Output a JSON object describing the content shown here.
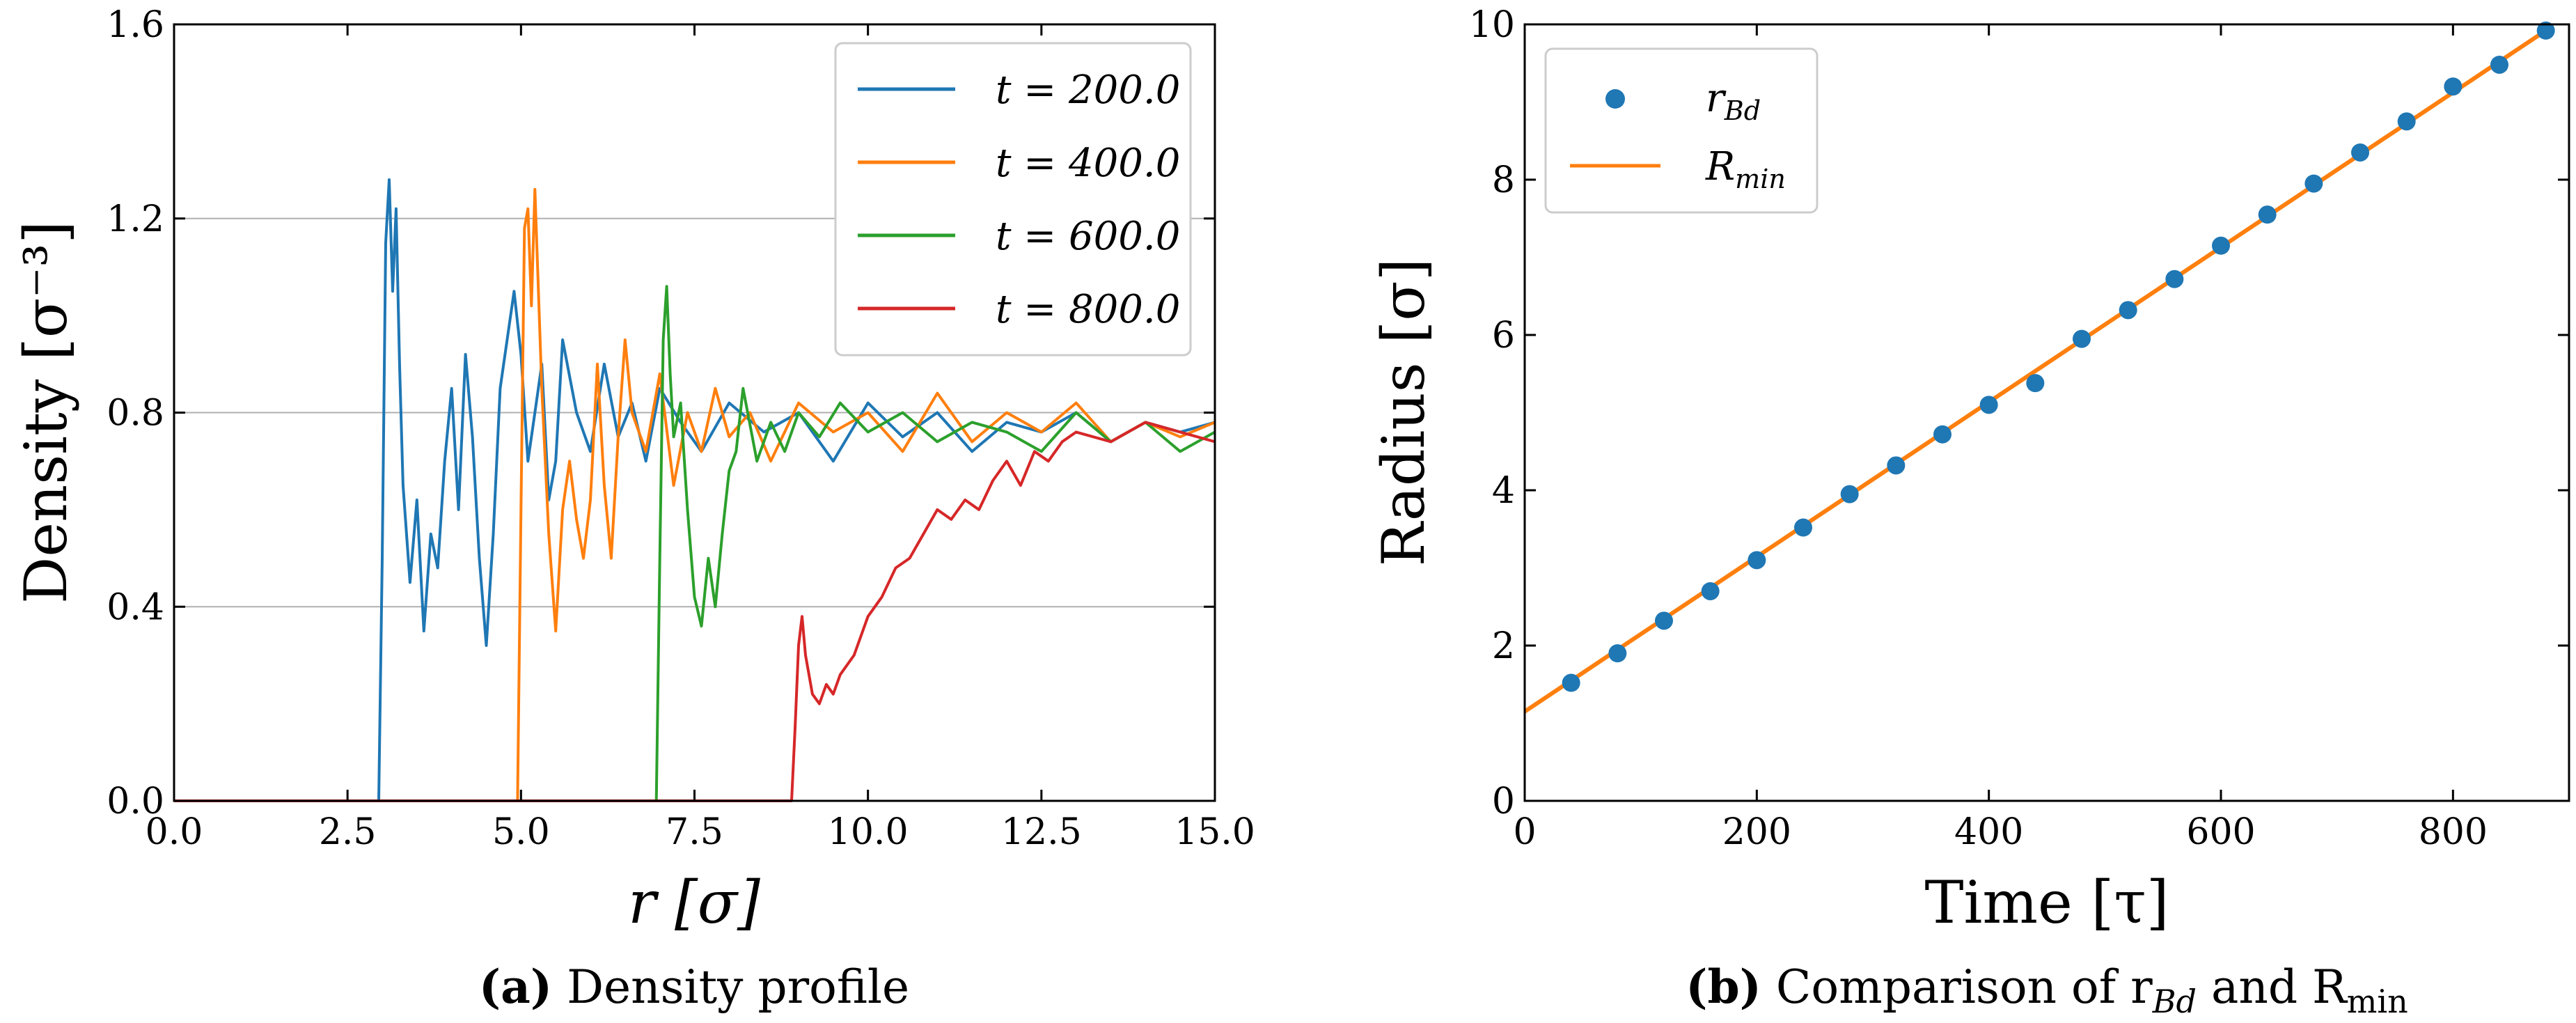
{
  "colors": {
    "blue": "#1f77b4",
    "orange": "#ff7f0e",
    "green": "#2ca02c",
    "red": "#d62728",
    "grid": "#b0b0b0",
    "axis": "#000000"
  },
  "chart_data": [
    {
      "type": "line",
      "title": "",
      "xlabel": "r [σ]",
      "ylabel": "Density [σ⁻³]",
      "xlim": [
        0.0,
        15.0
      ],
      "ylim": [
        0.0,
        1.6
      ],
      "xticks": [
        "0.0",
        "2.5",
        "5.0",
        "7.5",
        "10.0",
        "12.5",
        "15.0"
      ],
      "yticks": [
        "0.0",
        "0.4",
        "0.8",
        "1.2",
        "1.6"
      ],
      "grid": "horizontal",
      "legend_position": "top-right",
      "caption_bold": "(a)",
      "caption_text": " Density profile",
      "series": [
        {
          "name": "t = 200.0",
          "color": "#1f77b4",
          "x": [
            0.0,
            2.9,
            2.95,
            3.0,
            3.05,
            3.1,
            3.15,
            3.2,
            3.25,
            3.3,
            3.4,
            3.5,
            3.6,
            3.7,
            3.8,
            3.9,
            4.0,
            4.1,
            4.2,
            4.3,
            4.4,
            4.5,
            4.6,
            4.7,
            4.8,
            4.9,
            5.0,
            5.1,
            5.2,
            5.3,
            5.4,
            5.5,
            5.6,
            5.8,
            6.0,
            6.2,
            6.4,
            6.6,
            6.8,
            7.0,
            7.3,
            7.6,
            8.0,
            8.5,
            9.0,
            9.5,
            10.0,
            10.5,
            11.0,
            11.5,
            12.0,
            12.5,
            13.0,
            13.5,
            14.0,
            14.5,
            15.0
          ],
          "y": [
            0.0,
            0.0,
            0.0,
            0.5,
            1.15,
            1.28,
            1.05,
            1.22,
            0.9,
            0.65,
            0.45,
            0.62,
            0.35,
            0.55,
            0.48,
            0.7,
            0.85,
            0.6,
            0.92,
            0.75,
            0.5,
            0.32,
            0.55,
            0.85,
            0.95,
            1.05,
            0.92,
            0.7,
            0.8,
            0.9,
            0.62,
            0.7,
            0.95,
            0.8,
            0.72,
            0.9,
            0.75,
            0.82,
            0.7,
            0.85,
            0.78,
            0.72,
            0.82,
            0.76,
            0.8,
            0.7,
            0.82,
            0.75,
            0.8,
            0.72,
            0.78,
            0.76,
            0.8,
            0.74,
            0.78,
            0.76,
            0.78
          ]
        },
        {
          "name": "t = 400.0",
          "color": "#ff7f0e",
          "x": [
            0.0,
            4.95,
            5.0,
            5.05,
            5.1,
            5.15,
            5.2,
            5.3,
            5.4,
            5.5,
            5.6,
            5.7,
            5.8,
            5.9,
            6.0,
            6.1,
            6.2,
            6.3,
            6.4,
            6.5,
            6.6,
            6.8,
            7.0,
            7.2,
            7.4,
            7.6,
            7.8,
            8.0,
            8.3,
            8.6,
            9.0,
            9.5,
            10.0,
            10.5,
            11.0,
            11.5,
            12.0,
            12.5,
            13.0,
            13.5,
            14.0,
            14.5,
            15.0
          ],
          "y": [
            0.0,
            0.0,
            0.6,
            1.18,
            1.22,
            1.02,
            1.26,
            0.85,
            0.55,
            0.35,
            0.6,
            0.7,
            0.58,
            0.5,
            0.62,
            0.9,
            0.65,
            0.5,
            0.75,
            0.95,
            0.8,
            0.72,
            0.88,
            0.65,
            0.8,
            0.72,
            0.85,
            0.75,
            0.8,
            0.7,
            0.82,
            0.76,
            0.8,
            0.72,
            0.84,
            0.74,
            0.8,
            0.76,
            0.82,
            0.74,
            0.78,
            0.75,
            0.78
          ]
        },
        {
          "name": "t = 600.0",
          "color": "#2ca02c",
          "x": [
            0.0,
            6.95,
            7.0,
            7.05,
            7.1,
            7.15,
            7.2,
            7.3,
            7.4,
            7.5,
            7.6,
            7.7,
            7.8,
            7.9,
            8.0,
            8.1,
            8.2,
            8.4,
            8.6,
            8.8,
            9.0,
            9.3,
            9.6,
            10.0,
            10.5,
            11.0,
            11.5,
            12.0,
            12.5,
            13.0,
            13.5,
            14.0,
            14.5,
            15.0
          ],
          "y": [
            0.0,
            0.0,
            0.5,
            0.95,
            1.06,
            0.88,
            0.75,
            0.82,
            0.6,
            0.42,
            0.36,
            0.5,
            0.4,
            0.55,
            0.68,
            0.72,
            0.85,
            0.7,
            0.78,
            0.72,
            0.8,
            0.75,
            0.82,
            0.76,
            0.8,
            0.74,
            0.78,
            0.76,
            0.72,
            0.8,
            0.74,
            0.78,
            0.72,
            0.76
          ]
        },
        {
          "name": "t = 800.0",
          "color": "#d62728",
          "x": [
            0.0,
            8.9,
            8.95,
            9.0,
            9.05,
            9.1,
            9.2,
            9.3,
            9.4,
            9.5,
            9.6,
            9.8,
            10.0,
            10.2,
            10.4,
            10.6,
            10.8,
            11.0,
            11.2,
            11.4,
            11.6,
            11.8,
            12.0,
            12.2,
            12.4,
            12.6,
            12.8,
            13.0,
            13.5,
            14.0,
            14.5,
            15.0
          ],
          "y": [
            0.0,
            0.0,
            0.15,
            0.32,
            0.38,
            0.3,
            0.22,
            0.2,
            0.24,
            0.22,
            0.26,
            0.3,
            0.38,
            0.42,
            0.48,
            0.5,
            0.55,
            0.6,
            0.58,
            0.62,
            0.6,
            0.66,
            0.7,
            0.65,
            0.72,
            0.7,
            0.74,
            0.76,
            0.74,
            0.78,
            0.76,
            0.74
          ]
        }
      ]
    },
    {
      "type": "scatter",
      "title": "",
      "xlabel": "Time [τ]",
      "ylabel": "Radius [σ]",
      "xlim": [
        0,
        900
      ],
      "ylim": [
        0,
        10
      ],
      "xticks": [
        "0",
        "200",
        "400",
        "600",
        "800"
      ],
      "yticks": [
        "0",
        "2",
        "4",
        "6",
        "8",
        "10"
      ],
      "grid": "off",
      "legend_position": "top-left",
      "caption_bold": "(b)",
      "caption_text": " Comparison of r",
      "caption_sub1": "Bd",
      "caption_mid": " and R",
      "caption_sub2": "min",
      "scatter": {
        "name": "r",
        "name_sub": "Bd",
        "color": "#1f77b4",
        "x": [
          40,
          80,
          120,
          160,
          200,
          240,
          280,
          320,
          360,
          400,
          440,
          480,
          520,
          560,
          600,
          640,
          680,
          720,
          760,
          800,
          840,
          880
        ],
        "y": [
          1.52,
          1.9,
          2.32,
          2.7,
          3.1,
          3.52,
          3.95,
          4.32,
          4.72,
          5.1,
          5.38,
          5.95,
          6.32,
          6.72,
          7.15,
          7.55,
          7.95,
          8.35,
          8.75,
          9.2,
          9.48,
          9.92
        ]
      },
      "line": {
        "name": "R",
        "name_sub": "min",
        "color": "#ff7f0e",
        "x": [
          0,
          880
        ],
        "y": [
          1.15,
          9.92
        ]
      }
    }
  ]
}
